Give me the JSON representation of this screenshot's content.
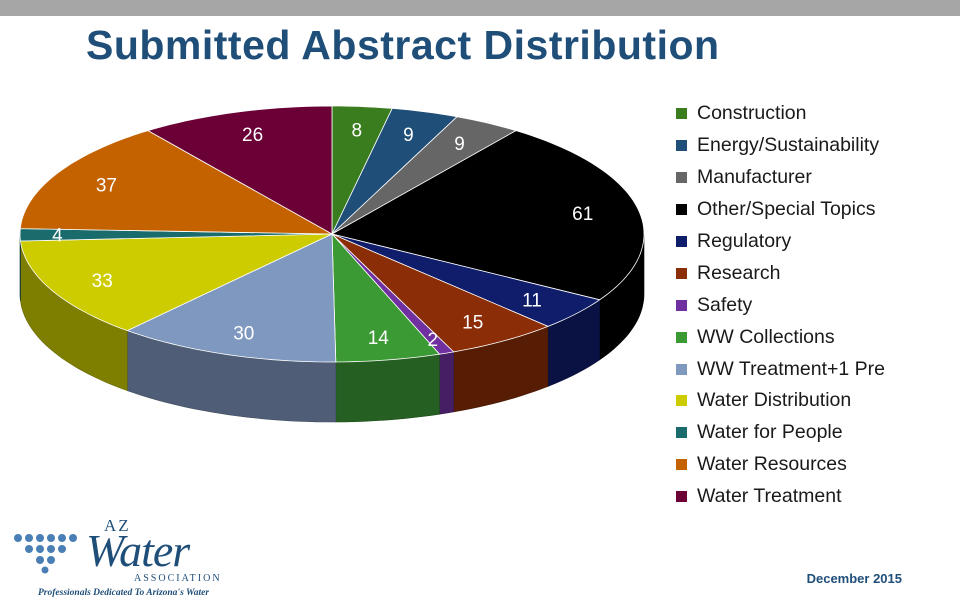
{
  "title": "Submitted Abstract Distribution",
  "footer": {
    "date": "December 2015"
  },
  "logo": {
    "az": "AZ",
    "word": "Water",
    "association": "ASSOCIATION",
    "tagline": "Professionals Dedicated To Arizona's Water"
  },
  "chart_data": {
    "type": "pie",
    "title": "Submitted Abstract Distribution",
    "three_d": true,
    "legend_placement": "right",
    "categories": [
      "Construction",
      "Energy/Sustainability",
      "Manufacturer",
      "Other/Special Topics",
      "Regulatory",
      "Research",
      "Safety",
      "WW Collections",
      "WW Treatment+1 Pre",
      "Water Distribution",
      "Water for People",
      "Water Resources",
      "Water Treatment"
    ],
    "values": [
      8,
      9,
      9,
      61,
      11,
      15,
      2,
      14,
      30,
      33,
      4,
      37,
      26
    ],
    "colors": [
      "#3a7d1e",
      "#1f4e79",
      "#666666",
      "#000000",
      "#0f1d6b",
      "#8b2e07",
      "#7030a0",
      "#3c9a35",
      "#7f98bf",
      "#cccc00",
      "#1a6b6b",
      "#c46200",
      "#6b0036"
    ],
    "label_colors": [
      "#ffffff",
      "#ffffff",
      "#ffffff",
      "#ffffff",
      "#ffffff",
      "#ffffff",
      "#ffffff",
      "#ffffff",
      "#ffffff",
      "#ffffff",
      "#ffffff",
      "#ffffff",
      "#ffffff"
    ]
  }
}
